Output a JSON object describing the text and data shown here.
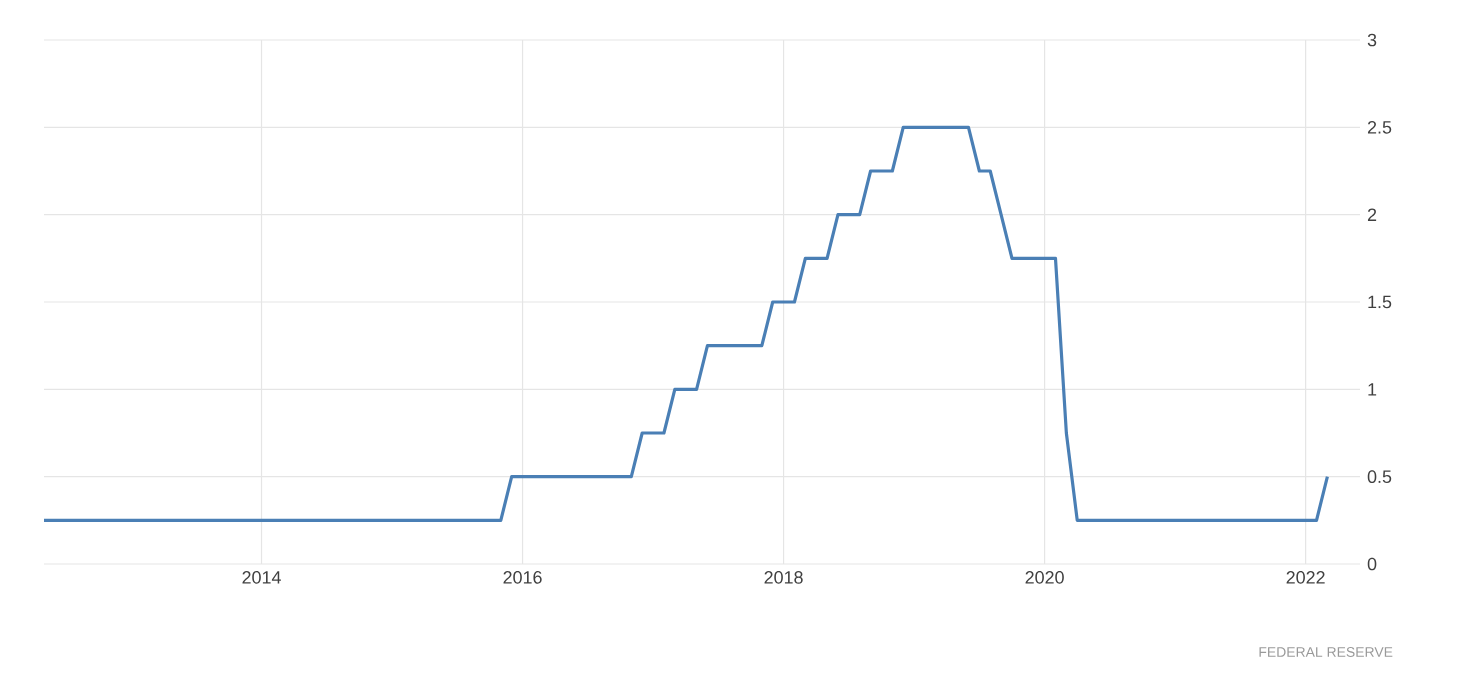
{
  "chart_data": {
    "type": "line",
    "x": [
      "2012-05",
      "2015-11",
      "2015-12",
      "2016-11",
      "2016-12",
      "2017-02",
      "2017-03",
      "2017-05",
      "2017-06",
      "2017-11",
      "2017-12",
      "2018-02",
      "2018-03",
      "2018-05",
      "2018-06",
      "2018-08",
      "2018-09",
      "2018-11",
      "2018-12",
      "2019-06",
      "2019-07",
      "2019-08",
      "2019-09",
      "2019-10",
      "2020-02",
      "2020-03",
      "2020-04",
      "2022-02",
      "2022-03"
    ],
    "series": [
      {
        "color": "#4a7fb5",
        "values": [
          0.25,
          0.25,
          0.5,
          0.5,
          0.75,
          0.75,
          1.0,
          1.0,
          1.25,
          1.25,
          1.5,
          1.5,
          1.75,
          1.75,
          2.0,
          2.0,
          2.25,
          2.25,
          2.5,
          2.5,
          2.25,
          2.25,
          2.0,
          1.75,
          1.75,
          0.75,
          0.25,
          0.25,
          0.5
        ]
      }
    ],
    "xlim": [
      "2012-05",
      "2022-06"
    ],
    "xticks": [
      "2014",
      "2016",
      "2018",
      "2020",
      "2022"
    ],
    "ylim": [
      0,
      3
    ],
    "yticks": [
      0,
      0.5,
      1,
      1.5,
      2,
      2.5,
      3
    ],
    "grid": true,
    "marker": "none",
    "line_style": "solid",
    "annotations": [
      "FEDERAL RESERVE"
    ]
  }
}
